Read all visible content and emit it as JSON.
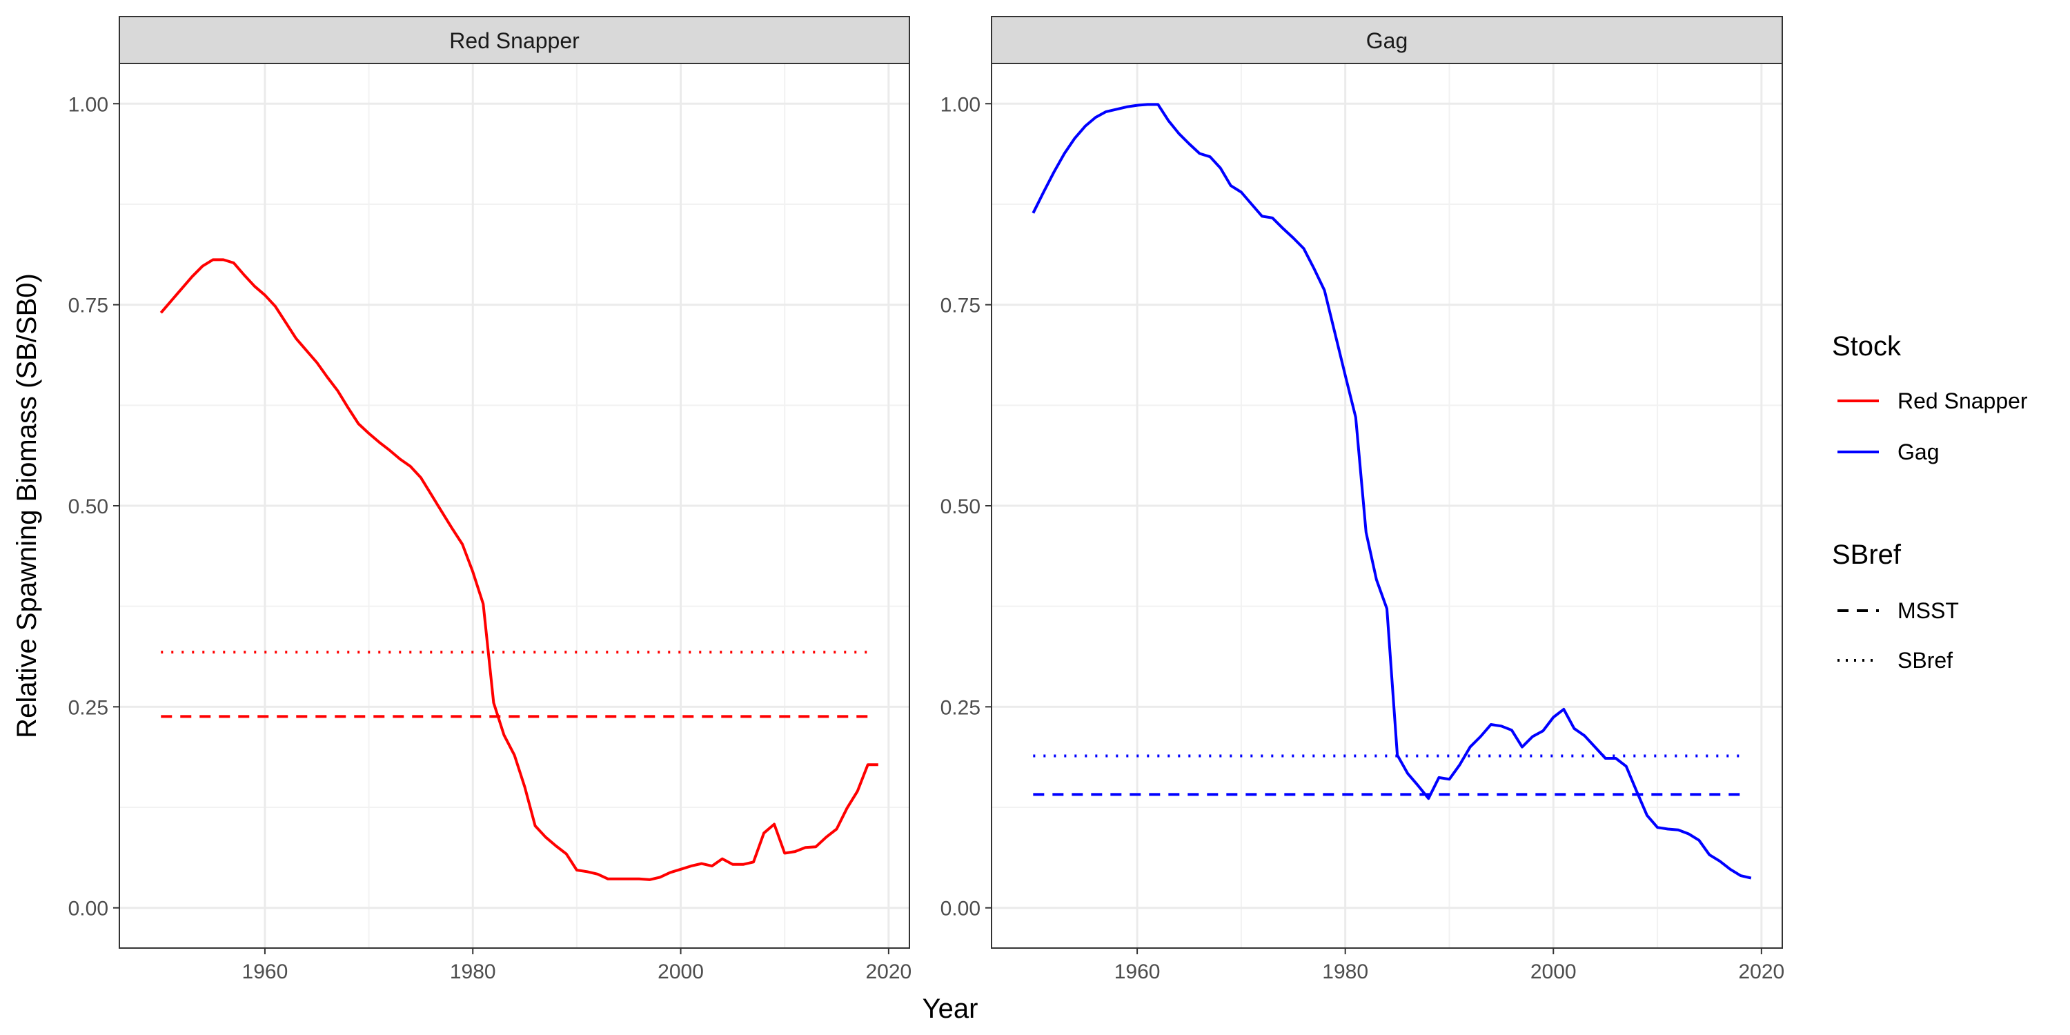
{
  "chart_data": {
    "type": "line",
    "xlabel": "Year",
    "ylabel": "Relative Spawning Biomass (SB/SB0)",
    "xlim": [
      1946,
      2022
    ],
    "ylim": [
      -0.05,
      1.05
    ],
    "x_ticks": [
      {
        "value": 1960,
        "label": "1960"
      },
      {
        "value": 1980,
        "label": "1980"
      },
      {
        "value": 2000,
        "label": "2000"
      },
      {
        "value": 2020,
        "label": "2020"
      }
    ],
    "y_ticks": [
      {
        "value": 0.0,
        "label": "0.00"
      },
      {
        "value": 0.25,
        "label": "0.25"
      },
      {
        "value": 0.5,
        "label": "0.50"
      },
      {
        "value": 0.75,
        "label": "0.75"
      },
      {
        "value": 1.0,
        "label": "1.00"
      }
    ],
    "grid": true,
    "legend_placement": "right",
    "legend": {
      "stock_title": "Stock",
      "stock_items": [
        {
          "name": "Red Snapper",
          "color": "#ff0000"
        },
        {
          "name": "Gag",
          "color": "#0000ff"
        }
      ],
      "sbref_title": "SBref",
      "sbref_items": [
        {
          "name": "MSST",
          "linetype": "dashed"
        },
        {
          "name": "SBref",
          "linetype": "dotted"
        }
      ]
    },
    "panels": [
      {
        "title": "Red Snapper",
        "color": "#ff0000",
        "x": [
          1950,
          1951,
          1952,
          1953,
          1954,
          1955,
          1956,
          1957,
          1958,
          1959,
          1960,
          1961,
          1962,
          1963,
          1964,
          1965,
          1966,
          1967,
          1968,
          1969,
          1970,
          1971,
          1972,
          1973,
          1974,
          1975,
          1976,
          1977,
          1978,
          1979,
          1980,
          1981,
          1982,
          1983,
          1984,
          1985,
          1986,
          1987,
          1988,
          1989,
          1990,
          1991,
          1992,
          1993,
          1994,
          1995,
          1996,
          1997,
          1998,
          1999,
          2000,
          2001,
          2002,
          2003,
          2004,
          2005,
          2006,
          2007,
          2008,
          2009,
          2010,
          2011,
          2012,
          2013,
          2014,
          2015,
          2016,
          2017,
          2018,
          2019
        ],
        "y": [
          0.74,
          0.755,
          0.77,
          0.785,
          0.798,
          0.806,
          0.806,
          0.802,
          0.787,
          0.773,
          0.762,
          0.748,
          0.728,
          0.708,
          0.693,
          0.678,
          0.66,
          0.643,
          0.622,
          0.602,
          0.59,
          0.579,
          0.569,
          0.558,
          0.549,
          0.535,
          0.514,
          0.493,
          0.472,
          0.452,
          0.418,
          0.378,
          0.255,
          0.215,
          0.19,
          0.15,
          0.102,
          0.088,
          0.077,
          0.067,
          0.047,
          0.045,
          0.042,
          0.036,
          0.036,
          0.036,
          0.036,
          0.035,
          0.038,
          0.044,
          0.048,
          0.052,
          0.055,
          0.052,
          0.061,
          0.054,
          0.054,
          0.057,
          0.093,
          0.104,
          0.068,
          0.07,
          0.075,
          0.076,
          0.088,
          0.098,
          0.124,
          0.145,
          0.178,
          0.178
        ],
        "msst": 0.238,
        "sbref": 0.318,
        "ref_x": [
          1950,
          2018.5
        ]
      },
      {
        "title": "Gag",
        "color": "#0000ff",
        "x": [
          1950,
          1951,
          1952,
          1953,
          1954,
          1955,
          1956,
          1957,
          1958,
          1959,
          1960,
          1961,
          1962,
          1963,
          1964,
          1965,
          1966,
          1967,
          1968,
          1969,
          1970,
          1971,
          1972,
          1973,
          1974,
          1975,
          1976,
          1977,
          1978,
          1979,
          1980,
          1981,
          1982,
          1983,
          1984,
          1985,
          1986,
          1987,
          1988,
          1989,
          1990,
          1991,
          1992,
          1993,
          1994,
          1995,
          1996,
          1997,
          1998,
          1999,
          2000,
          2001,
          2002,
          2003,
          2004,
          2005,
          2006,
          2007,
          2008,
          2009,
          2010,
          2011,
          2012,
          2013,
          2014,
          2015,
          2016,
          2017,
          2018,
          2019
        ],
        "y": [
          0.864,
          0.89,
          0.915,
          0.938,
          0.957,
          0.972,
          0.983,
          0.99,
          0.993,
          0.996,
          0.998,
          0.999,
          0.999,
          0.979,
          0.963,
          0.95,
          0.938,
          0.934,
          0.92,
          0.898,
          0.89,
          0.875,
          0.86,
          0.858,
          0.845,
          0.833,
          0.82,
          0.795,
          0.768,
          0.715,
          0.662,
          0.61,
          0.467,
          0.408,
          0.372,
          0.19,
          0.167,
          0.152,
          0.136,
          0.162,
          0.16,
          0.178,
          0.2,
          0.213,
          0.228,
          0.226,
          0.221,
          0.2,
          0.213,
          0.22,
          0.237,
          0.247,
          0.223,
          0.214,
          0.2,
          0.186,
          0.186,
          0.176,
          0.145,
          0.115,
          0.1,
          0.098,
          0.097,
          0.092,
          0.084,
          0.066,
          0.058,
          0.048,
          0.04,
          0.037
        ],
        "msst": 0.141,
        "sbref": 0.189,
        "ref_x": [
          1950,
          2018.5
        ]
      }
    ]
  }
}
